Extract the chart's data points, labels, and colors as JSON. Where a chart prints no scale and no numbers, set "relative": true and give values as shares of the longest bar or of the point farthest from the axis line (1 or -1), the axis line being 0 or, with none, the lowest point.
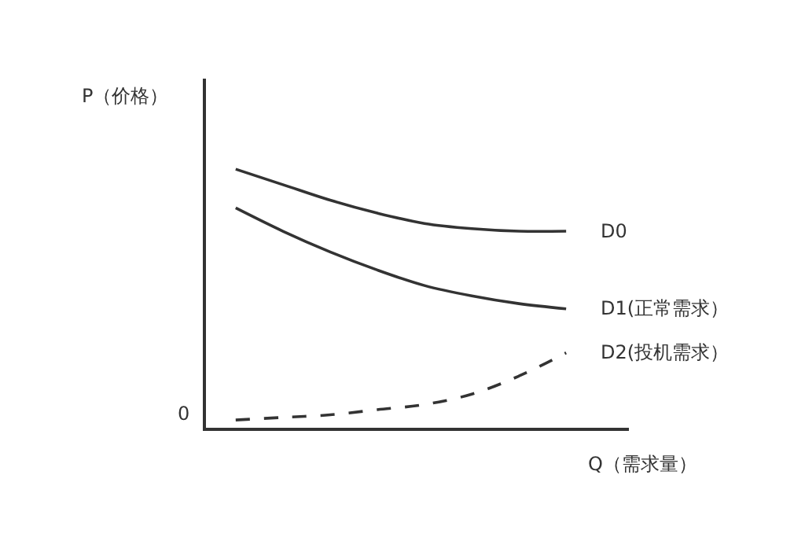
{
  "chart_data": {
    "type": "line",
    "relative": true,
    "xlabel": "Q（需求量）",
    "ylabel": "P（价格）",
    "categories": [
      null,
      null,
      null,
      null,
      null,
      null,
      null,
      null
    ],
    "series": [
      {
        "name": "D0",
        "color": "#333333",
        "line_style": "solid",
        "values": [
          1,
          0.94,
          0.88,
          0.83,
          0.79,
          0.77,
          0.76,
          0.76
        ]
      },
      {
        "name": "D1(正常需求）",
        "color": "#333333",
        "line_style": "solid",
        "values": [
          0.85,
          0.76,
          0.68,
          0.61,
          0.55,
          0.51,
          0.48,
          0.46
        ]
      },
      {
        "name": "D2(投机需求）",
        "color": "#333333",
        "line_style": "dashed",
        "values": [
          0.03,
          0.04,
          0.05,
          0.07,
          0.09,
          0.13,
          0.2,
          0.29
        ]
      }
    ],
    "annotations": [
      "0"
    ],
    "legend": false,
    "marker": "none"
  }
}
